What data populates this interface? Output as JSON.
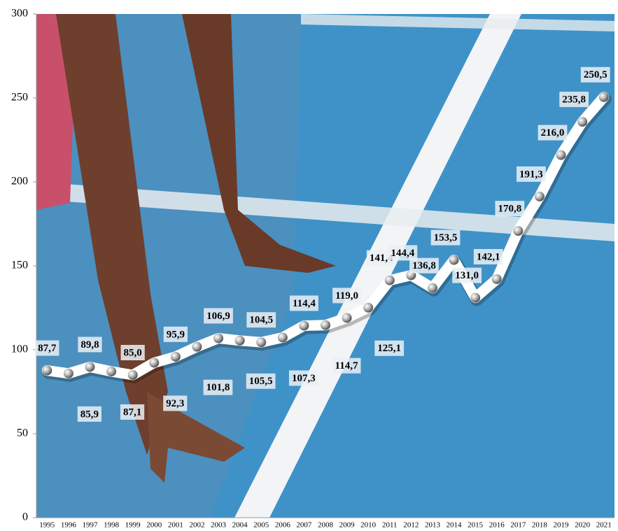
{
  "chart_data": {
    "type": "line",
    "categories": [
      "1995",
      "1996",
      "1997",
      "1998",
      "1999",
      "2000",
      "2001",
      "2002",
      "2003",
      "2004",
      "2005",
      "2006",
      "2007",
      "2008",
      "2009",
      "2010",
      "2011",
      "2012",
      "2013",
      "2014",
      "2015",
      "2016",
      "2017",
      "2018",
      "2019",
      "2020",
      "2021"
    ],
    "values": [
      87.7,
      85.9,
      89.8,
      87.1,
      85.0,
      92.3,
      95.9,
      101.8,
      106.9,
      105.5,
      104.5,
      107.3,
      114.4,
      114.7,
      119.0,
      125.1,
      141.4,
      144.4,
      136.8,
      153.5,
      131.0,
      142.1,
      170.8,
      191.3,
      216.0,
      235.8,
      250.5
    ],
    "value_labels": [
      "87,7",
      "85,9",
      "89,8",
      "87,1",
      "85,0",
      "92,3",
      "95,9",
      "101,8",
      "106,9",
      "105,5",
      "104,5",
      "107,3",
      "114,4",
      "114,7",
      "119,0",
      "125,1",
      "141,4",
      "144,4",
      "136,8",
      "153,5",
      "131,0",
      "142,1",
      "170,8",
      "191,3",
      "216,0",
      "235,8",
      "250,5"
    ],
    "color": "#ffffff",
    "ylim": [
      0,
      300
    ],
    "yticks": [
      0,
      50,
      100,
      150,
      200,
      250,
      300
    ]
  }
}
